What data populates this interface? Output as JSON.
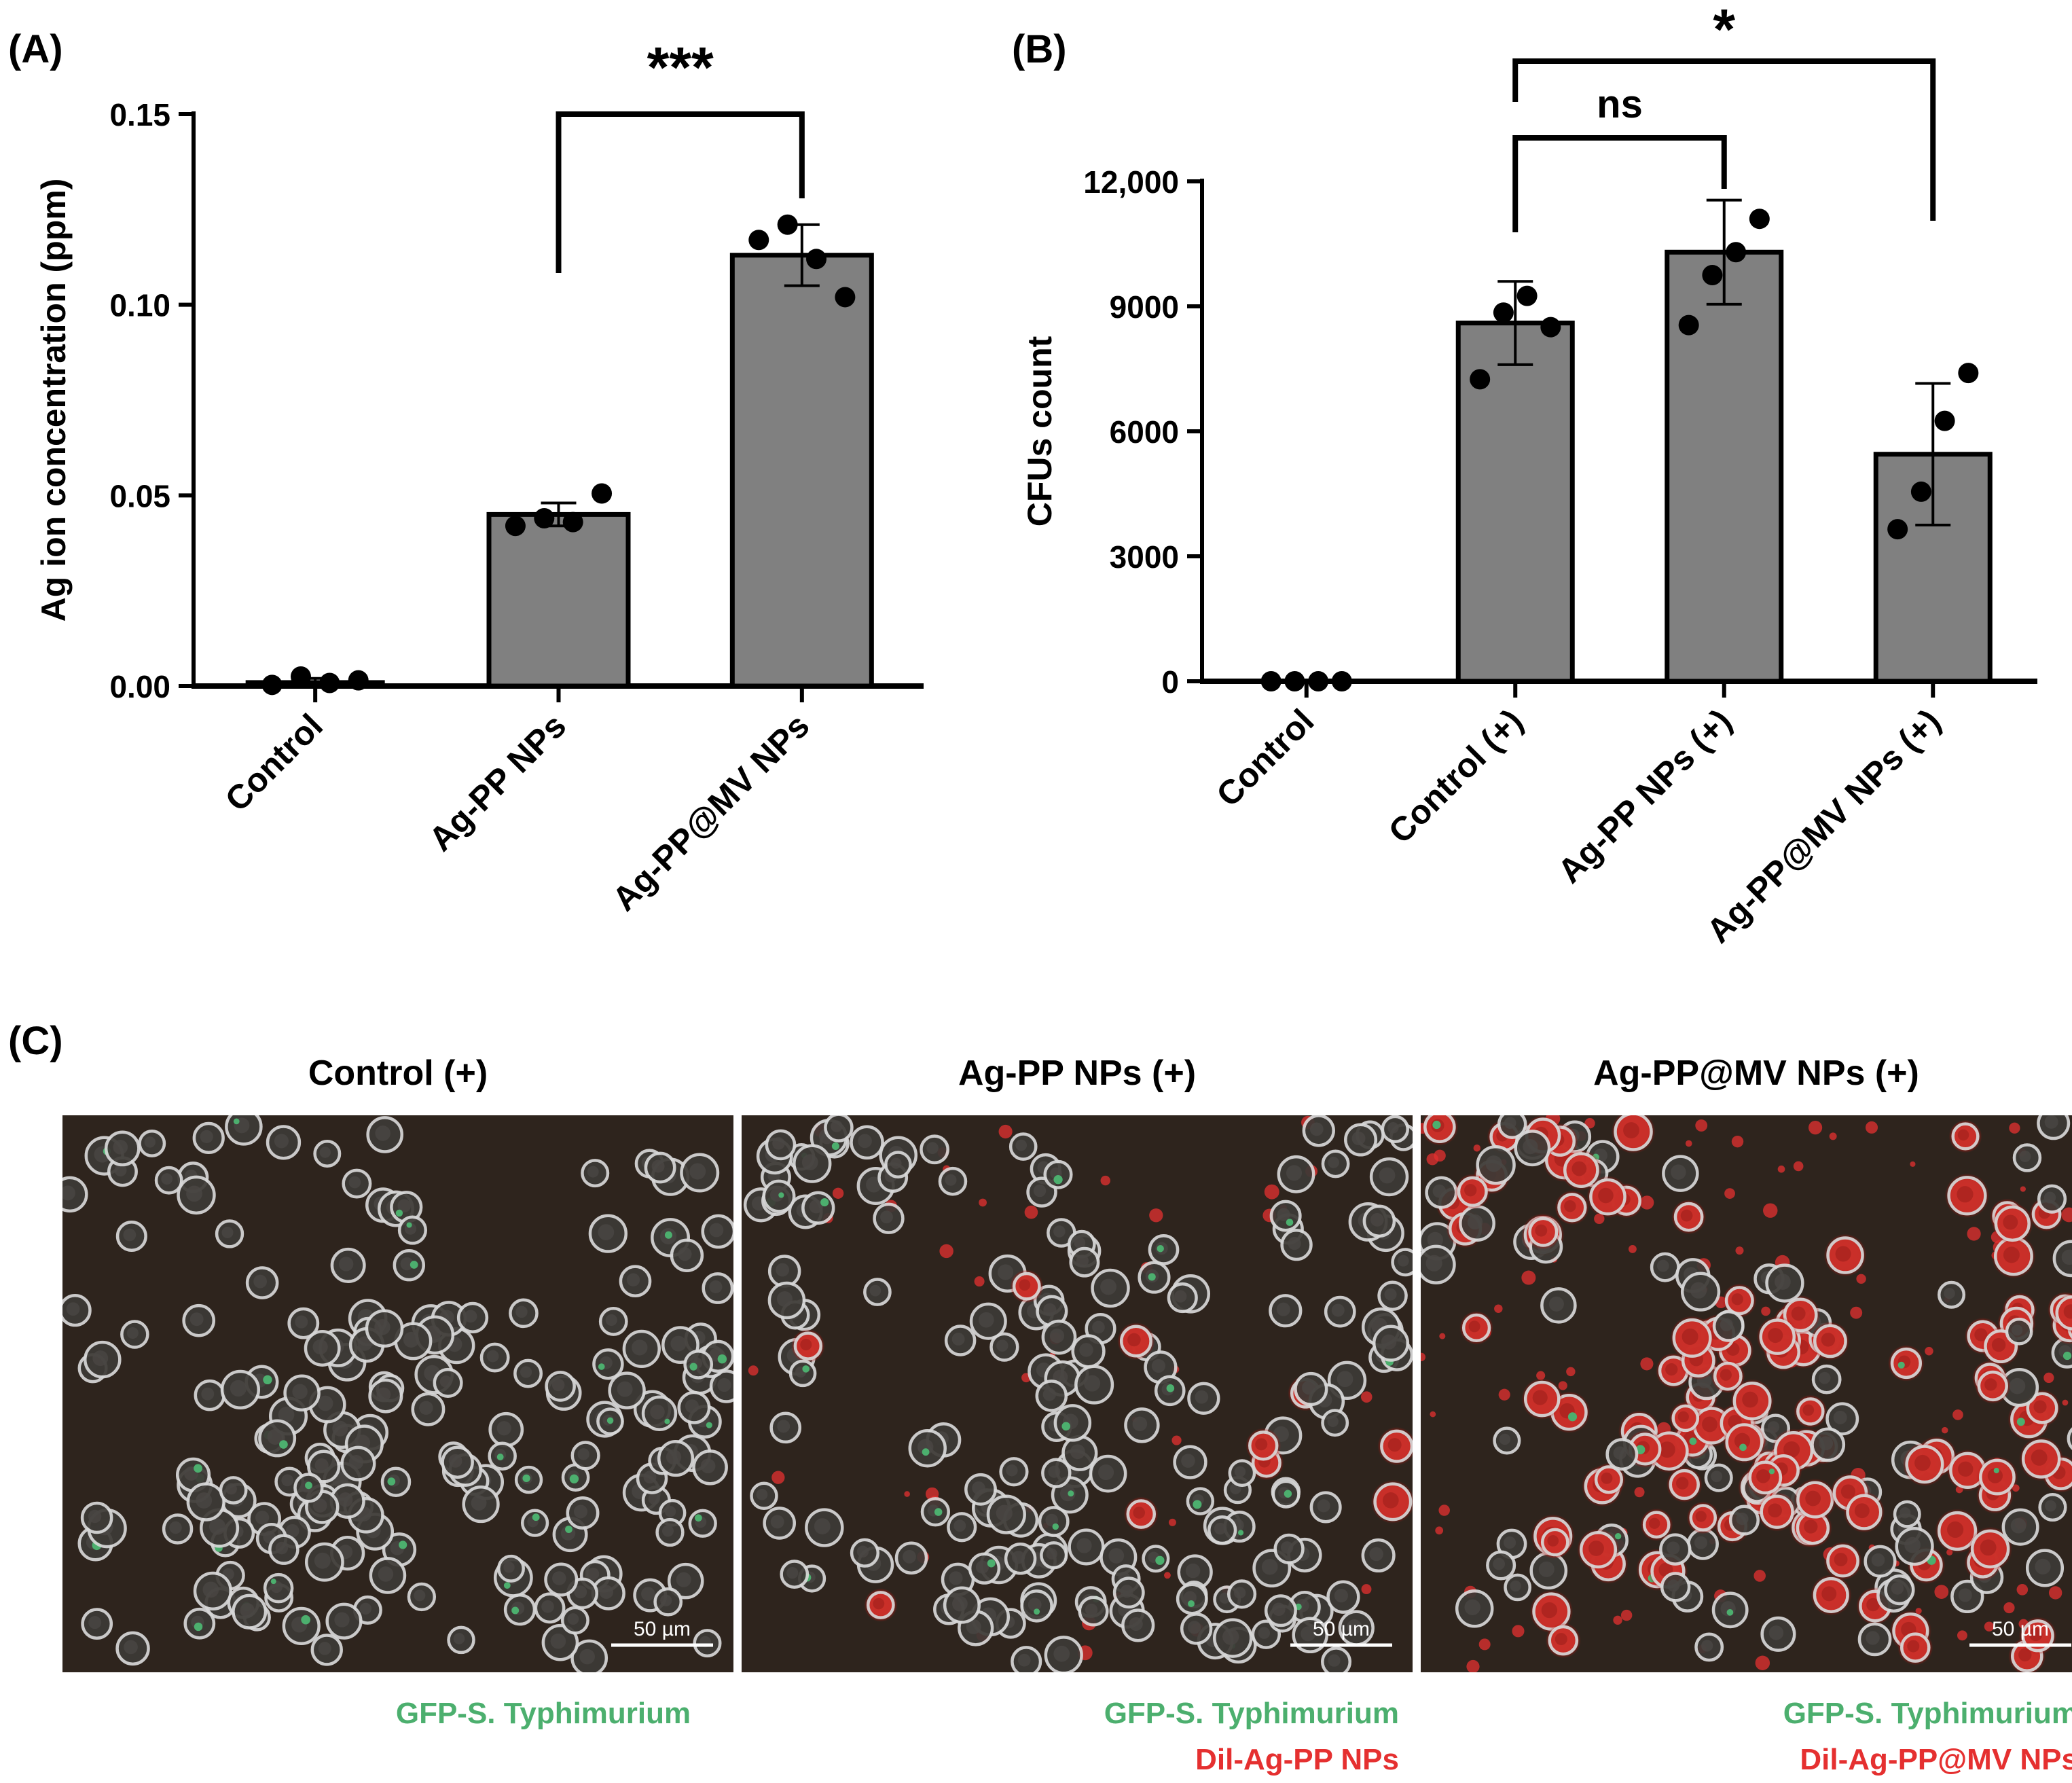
{
  "panel_labels": {
    "a": "(A)",
    "b": "(B)",
    "c": "(C)"
  },
  "colors": {
    "bar_fill": "#808080",
    "ink": "#000000",
    "gfp": "#4caf6e",
    "dil": "#e53030",
    "micrograph_bg": "#2e241d"
  },
  "chart_data": [
    {
      "type": "bar",
      "panel": "A",
      "title": "",
      "xlabel": "",
      "ylabel": "Ag ion concentration (ppm)",
      "ylim": [
        0,
        0.15
      ],
      "yticks": [
        0.0,
        0.05,
        0.1,
        0.15
      ],
      "ytick_labels": [
        "0.00",
        "0.05",
        "0.10",
        "0.15"
      ],
      "categories": [
        "Control",
        "Ag-PP NPs",
        "Ag-PP@MV NPs"
      ],
      "values": [
        0.001,
        0.045,
        0.113
      ],
      "sd": [
        0.001,
        0.003,
        0.008
      ],
      "points": [
        [
          0.0003,
          0.0025,
          0.0008,
          0.0015
        ],
        [
          0.042,
          0.044,
          0.043,
          0.0505
        ],
        [
          0.117,
          0.121,
          0.112,
          0.102
        ]
      ],
      "significance": [
        {
          "from": 1,
          "to": 2,
          "label": "***"
        }
      ]
    },
    {
      "type": "bar",
      "panel": "B",
      "title": "",
      "xlabel": "",
      "ylabel": "CFUs count",
      "ylim": [
        0,
        12000
      ],
      "yticks": [
        0,
        3000,
        6000,
        9000,
        12000
      ],
      "ytick_labels": [
        "0",
        "3000",
        "6000",
        "9000",
        "12,000"
      ],
      "categories": [
        "Control",
        "Control (+)",
        "Ag-PP NPs (+)",
        "Ag-PP@MV NPs (+)"
      ],
      "values": [
        0,
        8600,
        10300,
        5450
      ],
      "sd": [
        0,
        1000,
        1250,
        1700
      ],
      "points": [
        [
          0,
          0,
          0,
          0
        ],
        [
          7250,
          8850,
          9250,
          8500
        ],
        [
          8550,
          9750,
          10300,
          11100
        ],
        [
          3650,
          4550,
          6250,
          7400
        ]
      ],
      "significance": [
        {
          "from": 1,
          "to": 2,
          "label": "ns"
        },
        {
          "from": 1,
          "to": 3,
          "label": "*"
        }
      ]
    }
  ],
  "micrographs": [
    {
      "title": "Control (+)",
      "scale_bar": "50 µm",
      "legend": [
        "GFP-S. Typhimurium"
      ],
      "red_level": 0
    },
    {
      "title": "Ag-PP NPs (+)",
      "scale_bar": "50 µm",
      "legend": [
        "GFP-S. Typhimurium",
        "Dil-Ag-PP NPs"
      ],
      "red_level": 1
    },
    {
      "title": "Ag-PP@MV NPs (+)",
      "scale_bar": "50 µm",
      "legend": [
        "GFP-S. Typhimurium",
        "Dil-Ag-PP@MV NPs"
      ],
      "red_level": 2
    }
  ]
}
